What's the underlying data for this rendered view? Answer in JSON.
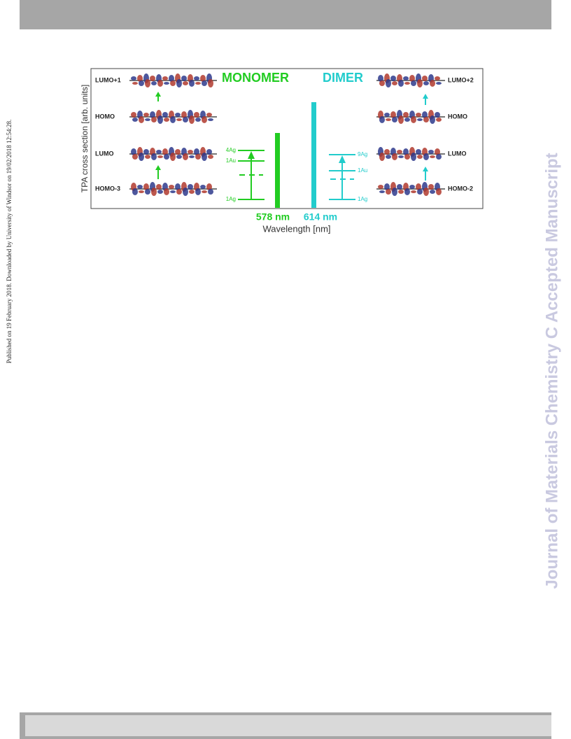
{
  "side_note": "Published on 19 February 2018. Downloaded by University of Windsor on 19/02/2018 12:54:28.",
  "journal": "Journal of Materials Chemistry C Accepted Manuscript",
  "figure": {
    "y_axis_label": "TPA cross section [arb. units]",
    "x_axis_label": "Wavelength [nm]",
    "monomer": {
      "title": "MONOMER",
      "wavelength": "578 nm",
      "orbitals": [
        "LUMO+1",
        "HOMO",
        "LUMO",
        "HOMO-3"
      ],
      "states": [
        "4Ag",
        "1Au",
        "1Ag"
      ]
    },
    "dimer": {
      "title": "DIMER",
      "wavelength": "614 nm",
      "orbitals": [
        "LUMO+2",
        "HOMO",
        "LUMO",
        "HOMO-2"
      ],
      "states": [
        "9Ag",
        "1Au",
        "1Ag"
      ]
    }
  }
}
